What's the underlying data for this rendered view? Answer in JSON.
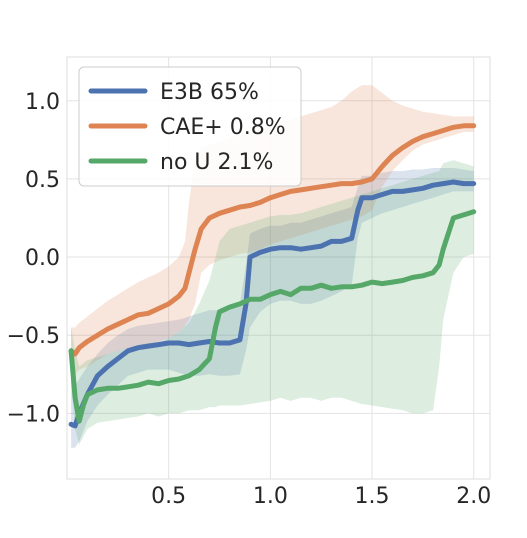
{
  "chart_data": {
    "type": "line",
    "title": "",
    "xlabel": "",
    "ylabel": "",
    "xlim": [
      0,
      2.08
    ],
    "ylim": [
      -1.42,
      1.28
    ],
    "xticks": [
      0.5,
      1.0,
      1.5,
      2.0
    ],
    "xtick_labels": [
      "0.5",
      "1.0",
      "1.5",
      "2.0"
    ],
    "yticks": [
      -1.0,
      -0.5,
      0.0,
      0.5,
      1.0
    ],
    "ytick_labels": [
      "−1.0",
      "−0.5",
      "0.0",
      "0.5",
      "1.0"
    ],
    "grid": true,
    "legend_position": "top-left",
    "series": [
      {
        "name": "E3B 65%",
        "color": "#4c72b0",
        "x": [
          0.02,
          0.04,
          0.06,
          0.1,
          0.15,
          0.2,
          0.25,
          0.3,
          0.35,
          0.4,
          0.45,
          0.5,
          0.55,
          0.6,
          0.65,
          0.7,
          0.75,
          0.8,
          0.85,
          0.88,
          0.9,
          0.95,
          1.0,
          1.05,
          1.1,
          1.15,
          1.2,
          1.25,
          1.3,
          1.35,
          1.4,
          1.43,
          1.45,
          1.5,
          1.55,
          1.6,
          1.65,
          1.7,
          1.75,
          1.8,
          1.85,
          1.9,
          1.95,
          2.0
        ],
        "y": [
          -1.07,
          -1.08,
          -1.0,
          -0.88,
          -0.76,
          -0.7,
          -0.65,
          -0.6,
          -0.58,
          -0.57,
          -0.56,
          -0.55,
          -0.55,
          -0.56,
          -0.55,
          -0.54,
          -0.55,
          -0.55,
          -0.53,
          -0.3,
          0.0,
          0.03,
          0.05,
          0.06,
          0.06,
          0.05,
          0.06,
          0.07,
          0.1,
          0.1,
          0.12,
          0.3,
          0.38,
          0.38,
          0.4,
          0.42,
          0.42,
          0.43,
          0.44,
          0.46,
          0.47,
          0.48,
          0.47,
          0.47
        ],
        "band_upper": [
          -0.8,
          -0.82,
          -0.78,
          -0.7,
          -0.62,
          -0.55,
          -0.5,
          -0.46,
          -0.44,
          -0.43,
          -0.42,
          -0.41,
          -0.4,
          -0.38,
          -0.36,
          -0.34,
          -0.34,
          -0.34,
          -0.3,
          -0.05,
          0.15,
          0.18,
          0.2,
          0.2,
          0.22,
          0.22,
          0.24,
          0.26,
          0.28,
          0.3,
          0.32,
          0.45,
          0.52,
          0.52,
          0.54,
          0.55,
          0.55,
          0.56,
          0.56,
          0.57,
          0.57,
          0.57,
          0.56,
          0.55
        ],
        "band_lower": [
          -1.22,
          -1.22,
          -1.18,
          -1.05,
          -0.95,
          -0.88,
          -0.82,
          -0.76,
          -0.74,
          -0.72,
          -0.72,
          -0.72,
          -0.74,
          -0.76,
          -0.76,
          -0.75,
          -0.76,
          -0.76,
          -0.75,
          -0.6,
          -0.45,
          -0.35,
          -0.3,
          -0.28,
          -0.28,
          -0.3,
          -0.3,
          -0.28,
          -0.25,
          -0.22,
          -0.18,
          0.12,
          0.22,
          0.25,
          0.28,
          0.3,
          0.32,
          0.34,
          0.36,
          0.38,
          0.4,
          0.42,
          0.42,
          0.42
        ]
      },
      {
        "name": "CAE+ 0.8%",
        "color": "#dd8452",
        "x": [
          0.02,
          0.04,
          0.06,
          0.1,
          0.15,
          0.2,
          0.25,
          0.3,
          0.35,
          0.4,
          0.45,
          0.5,
          0.55,
          0.58,
          0.6,
          0.63,
          0.66,
          0.7,
          0.75,
          0.8,
          0.85,
          0.9,
          0.95,
          1.0,
          1.05,
          1.1,
          1.15,
          1.2,
          1.25,
          1.3,
          1.35,
          1.4,
          1.45,
          1.5,
          1.55,
          1.6,
          1.65,
          1.7,
          1.75,
          1.8,
          1.85,
          1.9,
          1.95,
          2.0
        ],
        "y": [
          -0.6,
          -0.62,
          -0.58,
          -0.54,
          -0.5,
          -0.46,
          -0.43,
          -0.4,
          -0.37,
          -0.36,
          -0.33,
          -0.3,
          -0.25,
          -0.2,
          -0.1,
          0.05,
          0.18,
          0.25,
          0.28,
          0.3,
          0.32,
          0.33,
          0.35,
          0.38,
          0.4,
          0.42,
          0.43,
          0.44,
          0.45,
          0.46,
          0.47,
          0.47,
          0.48,
          0.5,
          0.58,
          0.65,
          0.7,
          0.74,
          0.77,
          0.79,
          0.81,
          0.83,
          0.84,
          0.84
        ],
        "band_upper": [
          -0.45,
          -0.45,
          -0.42,
          -0.38,
          -0.33,
          -0.28,
          -0.24,
          -0.2,
          -0.16,
          -0.13,
          -0.1,
          -0.06,
          0.0,
          0.1,
          0.35,
          0.62,
          0.7,
          0.72,
          0.74,
          0.76,
          0.78,
          0.8,
          0.82,
          0.84,
          0.86,
          0.88,
          0.9,
          0.92,
          0.94,
          0.96,
          1.0,
          1.06,
          1.1,
          1.1,
          1.05,
          1.0,
          0.97,
          0.95,
          0.93,
          0.92,
          0.91,
          0.9,
          0.9,
          0.9
        ],
        "band_lower": [
          -0.72,
          -0.75,
          -0.72,
          -0.7,
          -0.66,
          -0.62,
          -0.6,
          -0.58,
          -0.56,
          -0.56,
          -0.54,
          -0.52,
          -0.48,
          -0.44,
          -0.4,
          -0.3,
          -0.1,
          -0.05,
          -0.02,
          0.0,
          0.02,
          0.03,
          0.05,
          0.08,
          0.1,
          0.12,
          0.14,
          0.16,
          0.18,
          0.2,
          0.22,
          0.24,
          0.26,
          0.3,
          0.45,
          0.55,
          0.62,
          0.68,
          0.72,
          0.74,
          0.76,
          0.78,
          0.8,
          0.8
        ]
      },
      {
        "name": "no U 2.1%",
        "color": "#55a868",
        "x": [
          0.02,
          0.04,
          0.06,
          0.08,
          0.1,
          0.15,
          0.2,
          0.25,
          0.3,
          0.35,
          0.4,
          0.45,
          0.5,
          0.55,
          0.6,
          0.65,
          0.7,
          0.73,
          0.75,
          0.8,
          0.85,
          0.9,
          0.95,
          1.0,
          1.05,
          1.1,
          1.15,
          1.2,
          1.25,
          1.3,
          1.35,
          1.4,
          1.45,
          1.5,
          1.55,
          1.6,
          1.65,
          1.7,
          1.75,
          1.8,
          1.83,
          1.85,
          1.9,
          1.95,
          2.0
        ],
        "y": [
          -0.6,
          -0.9,
          -1.05,
          -0.95,
          -0.88,
          -0.85,
          -0.84,
          -0.84,
          -0.83,
          -0.82,
          -0.8,
          -0.81,
          -0.79,
          -0.78,
          -0.76,
          -0.72,
          -0.65,
          -0.45,
          -0.35,
          -0.32,
          -0.3,
          -0.27,
          -0.27,
          -0.24,
          -0.22,
          -0.24,
          -0.2,
          -0.2,
          -0.18,
          -0.2,
          -0.19,
          -0.19,
          -0.18,
          -0.16,
          -0.17,
          -0.16,
          -0.15,
          -0.13,
          -0.12,
          -0.1,
          -0.05,
          0.05,
          0.25,
          0.27,
          0.29
        ],
        "band_upper": [
          -0.45,
          -0.6,
          -0.7,
          -0.68,
          -0.66,
          -0.64,
          -0.62,
          -0.6,
          -0.58,
          -0.56,
          -0.55,
          -0.55,
          -0.52,
          -0.48,
          -0.42,
          -0.3,
          -0.15,
          0.0,
          0.1,
          0.18,
          0.2,
          0.22,
          0.24,
          0.26,
          0.27,
          0.27,
          0.28,
          0.3,
          0.32,
          0.34,
          0.36,
          0.38,
          0.4,
          0.42,
          0.44,
          0.46,
          0.48,
          0.5,
          0.52,
          0.54,
          0.55,
          0.6,
          0.62,
          0.6,
          0.58
        ],
        "band_lower": [
          -0.8,
          -1.1,
          -1.2,
          -1.15,
          -1.1,
          -1.06,
          -1.05,
          -1.04,
          -1.03,
          -1.02,
          -1.0,
          -1.02,
          -1.0,
          -1.0,
          -0.98,
          -0.98,
          -0.96,
          -0.96,
          -0.95,
          -0.95,
          -0.95,
          -0.94,
          -0.93,
          -0.92,
          -0.9,
          -0.92,
          -0.9,
          -0.9,
          -0.92,
          -0.9,
          -0.9,
          -0.92,
          -0.94,
          -0.95,
          -0.96,
          -0.97,
          -0.98,
          -1.0,
          -1.0,
          -0.98,
          -0.7,
          -0.4,
          -0.1,
          0.0,
          0.02
        ]
      }
    ]
  }
}
